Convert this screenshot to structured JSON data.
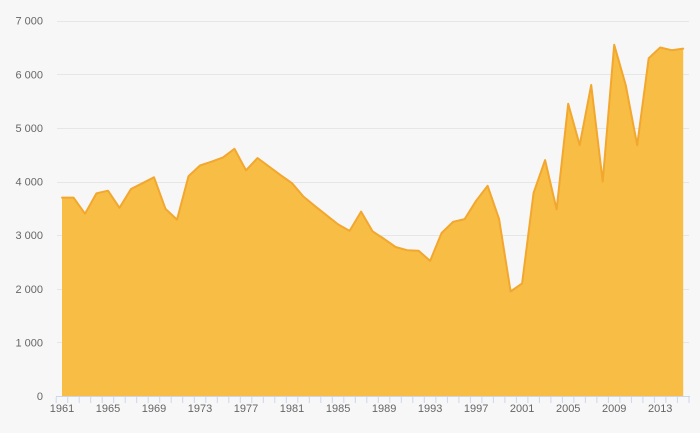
{
  "chart_style": {
    "background_color": "#f7f7f7",
    "grid_color": "#e6e6e6",
    "axis_line_color": "#ccd6eb",
    "tick_color": "#ccd6eb",
    "label_color": "#666666",
    "area_fill_color": "#f8bd45",
    "area_line_color": "#f2a72e"
  },
  "chart_data": {
    "type": "area",
    "title": "",
    "xlabel": "",
    "ylabel": "",
    "grid": true,
    "legend_position": "none",
    "ylim": [
      0,
      7000
    ],
    "y_tick_values": [
      0,
      1000,
      2000,
      3000,
      4000,
      5000,
      6000,
      7000
    ],
    "y_tick_labels": [
      "0",
      "1 000",
      "2 000",
      "3 000",
      "4 000",
      "5 000",
      "6 000",
      "7 000"
    ],
    "x_tick_label_years": [
      1961,
      1965,
      1969,
      1973,
      1977,
      1981,
      1985,
      1989,
      1993,
      1997,
      2001,
      2005,
      2009,
      2013
    ],
    "x_tick_labels": [
      "1961",
      "1965",
      "1969",
      "1973",
      "1977",
      "1981",
      "1985",
      "1989",
      "1993",
      "1997",
      "2001",
      "2005",
      "2009",
      "2013"
    ],
    "x": [
      1961,
      1962,
      1963,
      1964,
      1965,
      1966,
      1967,
      1968,
      1969,
      1970,
      1971,
      1972,
      1973,
      1974,
      1975,
      1976,
      1977,
      1978,
      1979,
      1980,
      1981,
      1982,
      1983,
      1984,
      1985,
      1986,
      1987,
      1988,
      1989,
      1990,
      1991,
      1992,
      1993,
      1994,
      1995,
      1996,
      1997,
      1998,
      1999,
      2000,
      2001,
      2002,
      2003,
      2004,
      2005,
      2006,
      2007,
      2008,
      2009,
      2010,
      2011,
      2012,
      2013,
      2014,
      2015
    ],
    "values": [
      3700,
      3700,
      3400,
      3780,
      3830,
      3510,
      3860,
      3970,
      4080,
      3490,
      3290,
      4100,
      4300,
      4370,
      4450,
      4610,
      4210,
      4440,
      4280,
      4120,
      3970,
      3720,
      3540,
      3370,
      3200,
      3080,
      3440,
      3070,
      2930,
      2780,
      2720,
      2710,
      2520,
      3040,
      3250,
      3300,
      3640,
      3920,
      3300,
      1950,
      2100,
      3790,
      4400,
      3480,
      5450,
      4680,
      5800,
      4000,
      6550,
      5800,
      4680,
      6300,
      6500,
      6450,
      6480
    ]
  }
}
